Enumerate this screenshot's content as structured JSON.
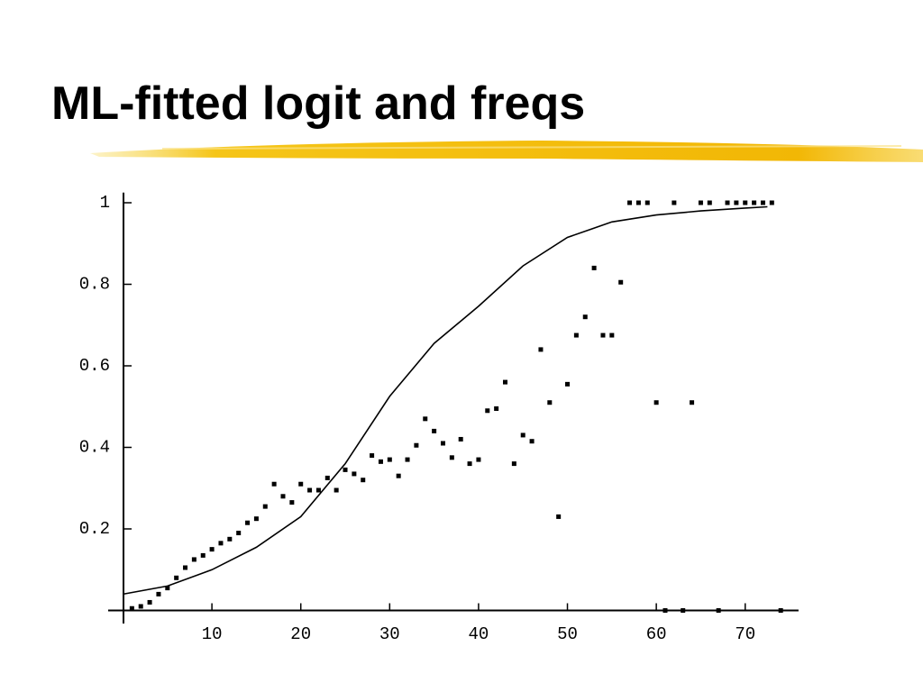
{
  "chart_data": {
    "type": "scatter",
    "title": "ML-fitted logit and freqs",
    "xlim": [
      0,
      76
    ],
    "ylim": [
      0,
      1.025
    ],
    "xticks": [
      10,
      20,
      30,
      40,
      50,
      60,
      70
    ],
    "yticks": [
      0.2,
      0.4,
      0.6,
      0.8,
      1
    ],
    "series": [
      {
        "type": "scatter",
        "color": "#000000",
        "x": [
          1,
          2,
          3,
          4,
          5,
          6,
          7,
          8,
          9,
          10,
          11,
          12,
          13,
          14,
          15,
          16,
          17,
          18,
          19,
          20,
          21,
          22,
          23,
          24,
          25,
          26,
          27,
          28,
          29,
          30,
          31,
          32,
          33,
          34,
          35,
          36,
          37,
          38,
          39,
          40,
          41,
          42,
          43,
          44,
          45,
          46,
          47,
          48,
          49,
          50,
          51,
          52,
          53,
          54,
          55,
          56,
          57,
          58,
          59,
          60,
          61,
          62,
          63,
          64,
          65,
          66,
          67,
          68,
          69,
          70,
          71,
          72,
          73,
          74
        ],
        "values": [
          0.005,
          0.01,
          0.02,
          0.04,
          0.055,
          0.08,
          0.105,
          0.125,
          0.135,
          0.15,
          0.165,
          0.175,
          0.19,
          0.215,
          0.225,
          0.255,
          0.31,
          0.28,
          0.265,
          0.31,
          0.295,
          0.295,
          0.325,
          0.295,
          0.345,
          0.335,
          0.32,
          0.38,
          0.365,
          0.37,
          0.33,
          0.37,
          0.405,
          0.47,
          0.44,
          0.41,
          0.375,
          0.42,
          0.36,
          0.37,
          0.49,
          0.495,
          0.56,
          0.36,
          0.43,
          0.415,
          0.64,
          0.51,
          0.23,
          0.555,
          0.675,
          0.72,
          0.84,
          0.675,
          0.675,
          0.805,
          1,
          1,
          1,
          0.51,
          0,
          1,
          0,
          0.51,
          1,
          1,
          0,
          1,
          1,
          1,
          1,
          1,
          1,
          0
        ]
      },
      {
        "type": "line",
        "color": "#000000",
        "x": [
          0,
          5,
          10,
          15,
          20,
          25,
          30,
          35,
          40,
          45,
          50,
          55,
          60,
          65,
          70,
          72.5
        ],
        "values": [
          0.04,
          0.06,
          0.1,
          0.155,
          0.23,
          0.36,
          0.525,
          0.655,
          0.746,
          0.845,
          0.915,
          0.953,
          0.97,
          0.98,
          0.987,
          0.99
        ]
      }
    ]
  }
}
